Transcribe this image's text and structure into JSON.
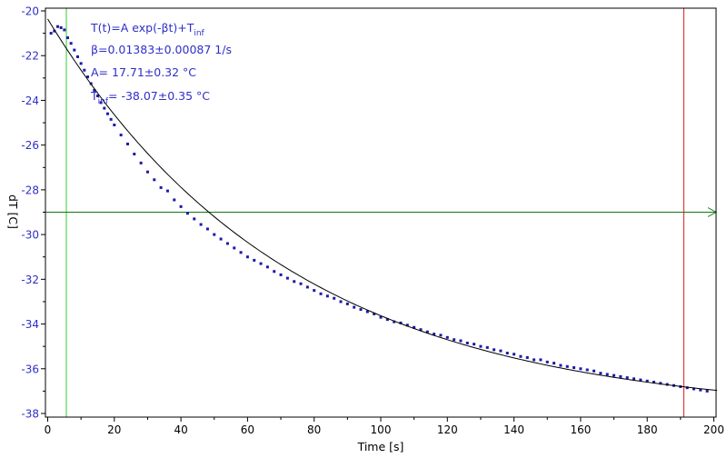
{
  "chart_data": {
    "type": "scatter",
    "xlabel": "Time [s]",
    "ylabel": "dT [C]",
    "xlim": [
      0,
      200
    ],
    "ylim": [
      -38,
      -20
    ],
    "x_ticks": [
      "0",
      "20",
      "40",
      "60",
      "80",
      "100",
      "120",
      "140",
      "160",
      "180",
      "200"
    ],
    "y_ticks": [
      "-20",
      "-22",
      "-24",
      "-26",
      "-28",
      "-30",
      "-32",
      "-34",
      "-36",
      "-38"
    ],
    "grid": false,
    "colors": {
      "data": "#1a1aa8",
      "fit": "#000000",
      "left_marker": "#33cc33",
      "right_marker": "#dd2222",
      "horizontal_marker": "#117711",
      "y_axis_text": "#2f2fc8"
    },
    "annotations": [
      "T(t)=A exp(-βt)+T",
      "β=0.01383±0.00087 1/s",
      "A= 17.71±0.32 °C",
      "T",
      "= -38.07±0.35 °C"
    ],
    "annotation_subscripts": [
      "inf",
      "inf"
    ],
    "fit": {
      "model": "T(t)=A exp(-βt)+T_inf",
      "beta": 0.01383,
      "A": 17.71,
      "T_inf": -38.07,
      "x_range": [
        0,
        201
      ]
    },
    "markers": {
      "vertical_left_x": 5.6,
      "vertical_right_x": 191,
      "horizontal_y": -29
    },
    "series": [
      {
        "x": [
          1,
          2,
          3,
          4,
          5,
          6,
          7,
          8,
          9,
          10,
          11,
          12,
          13,
          14,
          15,
          16,
          17,
          18,
          19,
          20,
          22,
          24,
          26,
          28,
          30,
          32,
          34,
          36,
          38,
          40,
          42,
          44,
          46,
          48,
          50,
          52,
          54,
          56,
          58,
          60,
          62,
          64,
          66,
          68,
          70,
          72,
          74,
          76,
          78,
          80,
          82,
          84,
          86,
          88,
          90,
          92,
          94,
          96,
          98,
          100,
          102,
          104,
          106,
          108,
          110,
          112,
          114,
          116,
          118,
          120,
          122,
          124,
          126,
          128,
          130,
          132,
          134,
          136,
          138,
          140,
          142,
          144,
          146,
          148,
          150,
          152,
          154,
          156,
          158,
          160,
          162,
          164,
          166,
          168,
          170,
          172,
          174,
          176,
          178,
          180,
          182,
          184,
          186,
          188,
          190,
          192,
          194,
          196,
          198
        ],
        "y": [
          -21.0,
          -20.9,
          -20.7,
          -20.75,
          -20.85,
          -21.2,
          -21.45,
          -21.75,
          -22.05,
          -22.35,
          -22.65,
          -22.95,
          -23.25,
          -23.55,
          -23.8,
          -24.1,
          -24.35,
          -24.6,
          -24.85,
          -25.1,
          -25.55,
          -25.95,
          -26.4,
          -26.8,
          -27.2,
          -27.55,
          -27.9,
          -28.05,
          -28.45,
          -28.75,
          -29.05,
          -29.3,
          -29.55,
          -29.75,
          -30.0,
          -30.2,
          -30.4,
          -30.6,
          -30.8,
          -31.0,
          -31.15,
          -31.3,
          -31.45,
          -31.65,
          -31.8,
          -31.95,
          -32.1,
          -32.2,
          -32.35,
          -32.5,
          -32.65,
          -32.75,
          -32.85,
          -33.0,
          -33.1,
          -33.25,
          -33.35,
          -33.45,
          -33.55,
          -33.7,
          -33.8,
          -33.9,
          -33.95,
          -34.05,
          -34.15,
          -34.25,
          -34.35,
          -34.45,
          -34.5,
          -34.6,
          -34.7,
          -34.75,
          -34.85,
          -34.9,
          -35.0,
          -35.05,
          -35.15,
          -35.2,
          -35.3,
          -35.35,
          -35.45,
          -35.5,
          -35.6,
          -35.6,
          -35.7,
          -35.75,
          -35.85,
          -35.9,
          -35.95,
          -36.0,
          -36.05,
          -36.1,
          -36.2,
          -36.25,
          -36.3,
          -36.35,
          -36.4,
          -36.45,
          -36.5,
          -36.55,
          -36.6,
          -36.65,
          -36.7,
          -36.75,
          -36.8,
          -36.85,
          -36.9,
          -36.95,
          -37.0
        ]
      }
    ]
  }
}
